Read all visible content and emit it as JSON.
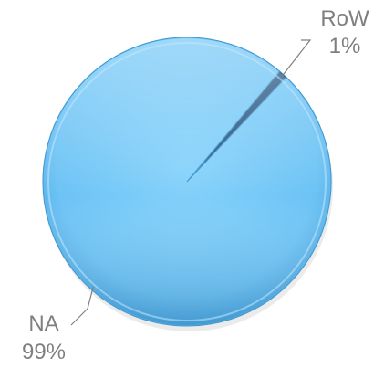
{
  "chart_data": {
    "type": "pie",
    "title": "",
    "slices": [
      {
        "label": "RoW",
        "value": 1,
        "value_label": "1%",
        "color": "#1f4e79"
      },
      {
        "label": "NA",
        "value": 99,
        "value_label": "99%",
        "color": "#6cc3f5"
      }
    ],
    "legend": "none",
    "data_labels": "outside-with-leader-lines",
    "style": "3d-bevel"
  }
}
